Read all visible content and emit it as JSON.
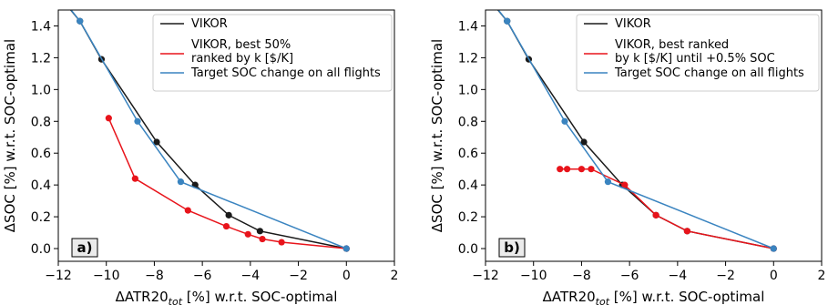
{
  "chart_data": [
    {
      "type": "line",
      "panel_label": "a)",
      "xlabel": "ΔATR20",
      "xlabel_sub": "tot",
      "xlabel_suffix": " [%] w.r.t. SOC-optimal",
      "ylabel": "ΔSOC [%] w.r.t. SOC-optimal",
      "xlim": [
        -12,
        2
      ],
      "ylim": [
        -0.08,
        1.5
      ],
      "xticks": [
        -12,
        -10,
        -8,
        -6,
        -4,
        -2,
        0,
        2
      ],
      "yticks": [
        0.0,
        0.2,
        0.4,
        0.6,
        0.8,
        1.0,
        1.2,
        1.4
      ],
      "legend_position": "top-right",
      "series": [
        {
          "name": "VIKOR",
          "color": "#1a1a1a",
          "x": [
            -12.3,
            -11.1,
            -10.2,
            -7.9,
            -6.3,
            -4.9,
            -3.6,
            0.0
          ],
          "y": [
            1.65,
            1.43,
            1.19,
            0.67,
            0.4,
            0.21,
            0.11,
            0.0
          ],
          "markers": [
            false,
            true,
            true,
            true,
            true,
            true,
            true,
            true
          ]
        },
        {
          "name": "VIKOR, best 50%\n ranked by k [$/K]",
          "color": "#e8141b",
          "x": [
            -9.9,
            -8.8,
            -6.6,
            -5.0,
            -4.1,
            -3.5,
            -2.7,
            0.0
          ],
          "y": [
            0.82,
            0.44,
            0.24,
            0.14,
            0.09,
            0.06,
            0.04,
            0.0
          ],
          "markers": [
            true,
            true,
            true,
            true,
            true,
            true,
            true,
            true
          ]
        },
        {
          "name": "Target SOC change on all flights",
          "color": "#3a84c0",
          "x": [
            -12.3,
            -11.1,
            -8.7,
            -6.9,
            0.0
          ],
          "y": [
            1.66,
            1.43,
            0.8,
            0.42,
            0.0
          ],
          "markers": [
            false,
            true,
            true,
            true,
            true
          ]
        }
      ]
    },
    {
      "type": "line",
      "panel_label": "b)",
      "xlabel": "ΔATR20",
      "xlabel_sub": "tot",
      "xlabel_suffix": " [%] w.r.t. SOC-optimal",
      "ylabel": "ΔSOC [%] w.r.t. SOC-optimal",
      "xlim": [
        -12,
        2
      ],
      "ylim": [
        -0.08,
        1.5
      ],
      "xticks": [
        -12,
        -10,
        -8,
        -6,
        -4,
        -2,
        0,
        2
      ],
      "yticks": [
        0.0,
        0.2,
        0.4,
        0.6,
        0.8,
        1.0,
        1.2,
        1.4
      ],
      "legend_position": "top-right",
      "series": [
        {
          "name": "VIKOR",
          "color": "#1a1a1a",
          "x": [
            -12.3,
            -11.1,
            -10.2,
            -7.9,
            -6.3,
            -4.9,
            -3.6,
            0.0
          ],
          "y": [
            1.65,
            1.43,
            1.19,
            0.67,
            0.4,
            0.21,
            0.11,
            0.0
          ],
          "markers": [
            false,
            true,
            true,
            true,
            true,
            true,
            true,
            true
          ]
        },
        {
          "name": "VIKOR, best ranked\n by k [$/K] until +0.5% SOC",
          "color": "#e8141b",
          "x": [
            -8.9,
            -8.6,
            -8.0,
            -7.6,
            -6.2,
            -4.9,
            -3.6,
            0.0
          ],
          "y": [
            0.5,
            0.5,
            0.5,
            0.5,
            0.4,
            0.21,
            0.11,
            0.0
          ],
          "markers": [
            true,
            true,
            true,
            true,
            true,
            true,
            true,
            true
          ]
        },
        {
          "name": "Target SOC change on all flights",
          "color": "#3a84c0",
          "x": [
            -12.3,
            -11.1,
            -8.7,
            -6.9,
            0.0
          ],
          "y": [
            1.66,
            1.43,
            0.8,
            0.42,
            0.0
          ],
          "markers": [
            false,
            true,
            true,
            true,
            true
          ]
        }
      ]
    }
  ]
}
